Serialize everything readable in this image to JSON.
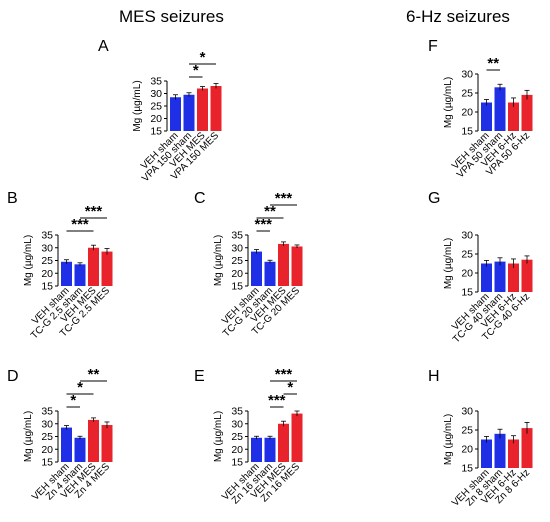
{
  "headers": {
    "mes": "MES seizures",
    "hz": "6-Hz seizures"
  },
  "colors": {
    "blue": "#1f2fe6",
    "red": "#e8232b"
  },
  "chart_data": [
    {
      "id": "A",
      "type": "bar",
      "ylabel": "Mg (µg/mL)",
      "ylim": [
        15,
        35
      ],
      "yticks": [
        15,
        20,
        25,
        30,
        35
      ],
      "categories": [
        "VEH sham",
        "VPA 150 sham",
        "VEH MES",
        "VPA 150 MES"
      ],
      "values": [
        28.5,
        29.5,
        32,
        33
      ],
      "errors": [
        1.0,
        0.8,
        0.8,
        1.0
      ],
      "colors": [
        "blue",
        "blue",
        "red",
        "red"
      ],
      "significance": [
        {
          "from": 1,
          "to": 2,
          "label": "*"
        },
        {
          "from": 1,
          "to": 3,
          "label": "*"
        }
      ]
    },
    {
      "id": "B",
      "type": "bar",
      "ylabel": "Mg (µg/mL)",
      "ylim": [
        15,
        35
      ],
      "yticks": [
        15,
        20,
        25,
        30,
        35
      ],
      "categories": [
        "VEH sham",
        "TC-G 2.5 sham",
        "VEH MES",
        "TC-G 2.5 MES"
      ],
      "values": [
        24.5,
        23.5,
        30,
        28.5
      ],
      "errors": [
        0.8,
        0.6,
        1.0,
        1.2
      ],
      "colors": [
        "blue",
        "blue",
        "red",
        "red"
      ],
      "significance": [
        {
          "from": 0,
          "to": 2,
          "label": "***"
        },
        {
          "from": 1,
          "to": 3,
          "label": "***"
        }
      ]
    },
    {
      "id": "C",
      "type": "bar",
      "ylabel": "Mg (µg/mL)",
      "ylim": [
        15,
        35
      ],
      "yticks": [
        15,
        20,
        25,
        30,
        35
      ],
      "categories": [
        "VEH sham",
        "TC-G 20 sham",
        "VEH MES",
        "TC-G 20 MES"
      ],
      "values": [
        28.5,
        24.5,
        31.5,
        30.5
      ],
      "errors": [
        0.8,
        0.6,
        0.8,
        0.6
      ],
      "colors": [
        "blue",
        "blue",
        "red",
        "red"
      ],
      "significance": [
        {
          "from": 0,
          "to": 1,
          "label": "***"
        },
        {
          "from": 0,
          "to": 2,
          "label": "**"
        },
        {
          "from": 1,
          "to": 3,
          "label": "***"
        }
      ]
    },
    {
      "id": "D",
      "type": "bar",
      "ylabel": "Mg (µg/mL)",
      "ylim": [
        15,
        35
      ],
      "yticks": [
        15,
        20,
        25,
        30,
        35
      ],
      "categories": [
        "VEH sham",
        "Zn 4 sham",
        "VEH MES",
        "Zn 4 MES"
      ],
      "values": [
        28.5,
        24.5,
        31.5,
        29.5
      ],
      "errors": [
        0.8,
        0.6,
        0.8,
        1.2
      ],
      "colors": [
        "blue",
        "blue",
        "red",
        "red"
      ],
      "significance": [
        {
          "from": 0,
          "to": 1,
          "label": "*"
        },
        {
          "from": 0,
          "to": 2,
          "label": "*"
        },
        {
          "from": 1,
          "to": 3,
          "label": "**"
        }
      ]
    },
    {
      "id": "E",
      "type": "bar",
      "ylabel": "Mg (µg/mL)",
      "ylim": [
        15,
        35
      ],
      "yticks": [
        15,
        20,
        25,
        30,
        35
      ],
      "categories": [
        "VEH sham",
        "Zn 16 sham",
        "VEH MES",
        "Zn 16 MES"
      ],
      "values": [
        24.5,
        24.5,
        30,
        34
      ],
      "errors": [
        0.6,
        0.6,
        1.0,
        1.0
      ],
      "colors": [
        "blue",
        "blue",
        "red",
        "red"
      ],
      "significance": [
        {
          "from": 1,
          "to": 2,
          "label": "***"
        },
        {
          "from": 2,
          "to": 3,
          "label": "*"
        },
        {
          "from": 1,
          "to": 3,
          "label": "***"
        }
      ]
    },
    {
      "id": "F",
      "type": "bar",
      "ylabel": "Mg (µg/mL)",
      "ylim": [
        15,
        30
      ],
      "yticks": [
        15,
        20,
        25,
        30
      ],
      "categories": [
        "VEH sham",
        "VPA 50 sham",
        "VEH 6-Hz",
        "VPA 50 6-Hz"
      ],
      "values": [
        22.5,
        26.5,
        22.5,
        24.5
      ],
      "errors": [
        0.8,
        0.8,
        1.2,
        1.2
      ],
      "colors": [
        "blue",
        "blue",
        "red",
        "red"
      ],
      "significance": [
        {
          "from": 0,
          "to": 1,
          "label": "**"
        }
      ]
    },
    {
      "id": "G",
      "type": "bar",
      "ylabel": "Mg (µg/mL)",
      "ylim": [
        15,
        30
      ],
      "yticks": [
        15,
        20,
        25,
        30
      ],
      "categories": [
        "VEH sham",
        "TC-G 40 sham",
        "VEH 6-Hz",
        "TC-G 40 6-Hz"
      ],
      "values": [
        22.5,
        23,
        22.5,
        23.5
      ],
      "errors": [
        0.8,
        1.0,
        1.2,
        1.0
      ],
      "colors": [
        "blue",
        "blue",
        "red",
        "red"
      ],
      "significance": []
    },
    {
      "id": "H",
      "type": "bar",
      "ylabel": "Mg (µg/mL)",
      "ylim": [
        15,
        30
      ],
      "yticks": [
        15,
        20,
        25,
        30
      ],
      "categories": [
        "VEH sham",
        "Zn 8 sham",
        "VEH 6-Hz",
        "Zn 8 6-Hz"
      ],
      "values": [
        22.5,
        24,
        22.5,
        25.5
      ],
      "errors": [
        0.8,
        1.2,
        1.0,
        1.5
      ],
      "colors": [
        "blue",
        "blue",
        "red",
        "red"
      ],
      "significance": []
    }
  ]
}
